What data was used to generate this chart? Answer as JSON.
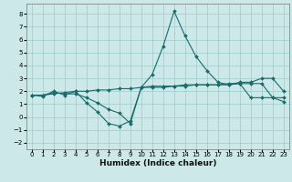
{
  "xlabel": "Humidex (Indice chaleur)",
  "xlim": [
    -0.5,
    23.5
  ],
  "ylim": [
    -2.5,
    8.8
  ],
  "yticks": [
    -2,
    -1,
    0,
    1,
    2,
    3,
    4,
    5,
    6,
    7,
    8
  ],
  "xticks": [
    0,
    1,
    2,
    3,
    4,
    5,
    6,
    7,
    8,
    9,
    10,
    11,
    12,
    13,
    14,
    15,
    16,
    17,
    18,
    19,
    20,
    21,
    22,
    23
  ],
  "background_color": "#cce8e8",
  "grid_color": "#99cccc",
  "line_color": "#1a6b6b",
  "line1_x": [
    0,
    1,
    2,
    3,
    4,
    5,
    6,
    7,
    8,
    9,
    10,
    11,
    12,
    13,
    14,
    15,
    16,
    17,
    18,
    19,
    20,
    21,
    22,
    23
  ],
  "line1_y": [
    1.7,
    1.6,
    2.0,
    1.7,
    2.0,
    1.1,
    0.4,
    -0.5,
    -0.7,
    -0.3,
    2.3,
    3.3,
    5.5,
    8.2,
    6.3,
    4.7,
    3.6,
    2.7,
    2.5,
    2.7,
    2.7,
    3.0,
    3.0,
    2.0
  ],
  "line2_x": [
    0,
    1,
    2,
    3,
    4,
    5,
    6,
    7,
    8,
    9,
    10,
    11,
    12,
    13,
    14,
    15,
    16,
    17,
    18,
    19,
    20,
    21,
    22,
    23
  ],
  "line2_y": [
    1.7,
    1.7,
    1.8,
    1.9,
    2.0,
    2.0,
    2.1,
    2.1,
    2.2,
    2.2,
    2.3,
    2.3,
    2.3,
    2.4,
    2.4,
    2.5,
    2.5,
    2.5,
    2.5,
    2.6,
    2.6,
    2.6,
    1.5,
    1.5
  ],
  "line3_x": [
    0,
    1,
    2,
    3,
    4,
    5,
    6,
    7,
    8,
    9,
    10,
    11,
    12,
    13,
    14,
    15,
    16,
    17,
    18,
    19,
    20,
    21,
    22,
    23
  ],
  "line3_y": [
    1.7,
    1.7,
    1.9,
    1.8,
    1.8,
    1.5,
    1.1,
    0.6,
    0.3,
    -0.5,
    2.3,
    2.4,
    2.4,
    2.4,
    2.5,
    2.5,
    2.5,
    2.5,
    2.6,
    2.6,
    1.5,
    1.5,
    1.5,
    1.2
  ],
  "tick_fontsize": 5.0,
  "xlabel_fontsize": 6.5,
  "marker_size": 2.0,
  "line_width": 0.8
}
